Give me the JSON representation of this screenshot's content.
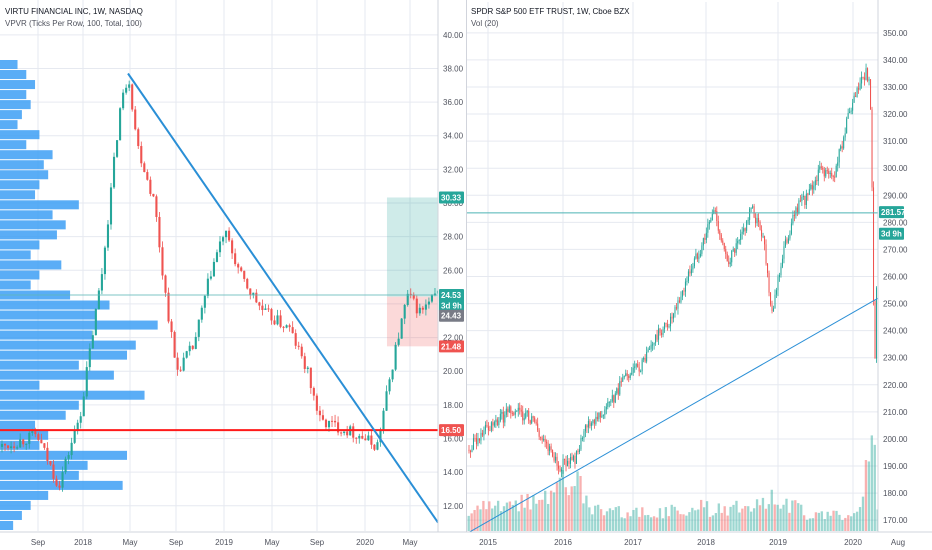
{
  "colors": {
    "up": "#26a69a",
    "down": "#ef5350",
    "profile": "#3d9ff5",
    "trendline": "#2a8fd6",
    "support": "#ff1a1a",
    "target_zone": "rgba(38,166,154,0.22)",
    "stop_zone": "rgba(239,83,80,0.22)",
    "grid": "#e6e9f0",
    "axis_text": "#50535e"
  },
  "chart_data": [
    {
      "type": "candlestick",
      "title": "VIRTU FINANCIAL INC, 1W, NASDAQ",
      "indicator_label": "VPVR (Ticks Per Row, 100, Total, 100)",
      "x_ticks": [
        "Sep",
        "2018",
        "May",
        "Sep",
        "2019",
        "May",
        "Sep",
        "2020",
        "May"
      ],
      "y_ticks": [
        "12.00",
        "14.00",
        "16.00",
        "18.00",
        "20.00",
        "22.00",
        "24.00",
        "26.00",
        "28.00",
        "30.00",
        "32.00",
        "34.00",
        "36.00",
        "38.00",
        "40.00"
      ],
      "ylim": [
        10.5,
        41.0
      ],
      "price_path": [
        [
          0,
          15.5
        ],
        [
          0.08,
          16.2
        ],
        [
          0.13,
          13.2
        ],
        [
          0.18,
          17.5
        ],
        [
          0.23,
          26.0
        ],
        [
          0.27,
          35.5
        ],
        [
          0.29,
          37.7
        ],
        [
          0.31,
          33.5
        ],
        [
          0.35,
          30.0
        ],
        [
          0.37,
          25.5
        ],
        [
          0.4,
          20.0
        ],
        [
          0.44,
          21.5
        ],
        [
          0.48,
          26.0
        ],
        [
          0.51,
          28.3
        ],
        [
          0.55,
          25.5
        ],
        [
          0.6,
          23.5
        ],
        [
          0.66,
          22.5
        ],
        [
          0.7,
          20.0
        ],
        [
          0.73,
          17.0
        ],
        [
          0.76,
          16.8
        ],
        [
          0.82,
          16.2
        ],
        [
          0.86,
          15.5
        ],
        [
          0.9,
          21.0
        ],
        [
          0.93,
          24.5
        ],
        [
          0.96,
          23.5
        ],
        [
          1.0,
          24.6
        ]
      ],
      "volume_profile": [
        0.04,
        0.06,
        0.08,
        0.06,
        0.07,
        0.05,
        0.04,
        0.09,
        0.06,
        0.12,
        0.1,
        0.11,
        0.09,
        0.08,
        0.18,
        0.12,
        0.15,
        0.13,
        0.09,
        0.07,
        0.14,
        0.09,
        0.07,
        0.16,
        0.25,
        0.22,
        0.36,
        0.21,
        0.31,
        0.29,
        0.18,
        0.26,
        0.09,
        0.33,
        0.18,
        0.15,
        0.08,
        0.11,
        0.09,
        0.29,
        0.2,
        0.18,
        0.28,
        0.11,
        0.07,
        0.05,
        0.03
      ],
      "trendline": [
        [
          0.289,
          37.7
        ],
        [
          1.0,
          11.0
        ]
      ],
      "support_level": 16.5,
      "long_position": {
        "entry": 24.43,
        "target": 30.33,
        "stop": 21.48,
        "x_start": 0.883,
        "x_end": 1.0
      },
      "last_price": 24.53,
      "price_badges": [
        {
          "value": 30.33,
          "label": "30.33",
          "color": "#26a69a"
        },
        {
          "value": 24.53,
          "label": "24.53",
          "color": "#26a69a"
        },
        {
          "value": 23.9,
          "label": "3d 9h",
          "color": "#26a69a"
        },
        {
          "value": 23.3,
          "label": "24.43",
          "color": "#787b86"
        },
        {
          "value": 21.48,
          "label": "21.48",
          "color": "#ef5350"
        },
        {
          "value": 16.5,
          "label": "16.50",
          "color": "#ef5350"
        }
      ]
    },
    {
      "type": "candlestick",
      "title": "SPDR S&P 500 ETF TRUST, 1W, Cboe BZX",
      "indicator_label": "Vol (20)",
      "x_ticks": [
        "2015",
        "2016",
        "2017",
        "2018",
        "2019",
        "2020",
        "Aug"
      ],
      "y_ticks": [
        "170.00",
        "180.00",
        "190.00",
        "200.00",
        "210.00",
        "220.00",
        "230.00",
        "240.00",
        "250.00",
        "260.00",
        "270.00",
        "280.00",
        "290.00",
        "300.00",
        "310.00",
        "320.00",
        "330.00",
        "340.00",
        "350.00"
      ],
      "ylim": [
        166.0,
        354.0
      ],
      "price_path": [
        [
          0,
          196
        ],
        [
          0.05,
          205
        ],
        [
          0.1,
          210
        ],
        [
          0.15,
          208
        ],
        [
          0.18,
          200
        ],
        [
          0.22,
          190
        ],
        [
          0.26,
          193
        ],
        [
          0.29,
          205
        ],
        [
          0.32,
          210
        ],
        [
          0.35,
          214
        ],
        [
          0.38,
          222
        ],
        [
          0.42,
          227
        ],
        [
          0.46,
          238
        ],
        [
          0.5,
          245
        ],
        [
          0.54,
          262
        ],
        [
          0.57,
          272
        ],
        [
          0.6,
          285
        ],
        [
          0.63,
          265
        ],
        [
          0.66,
          272
        ],
        [
          0.69,
          285
        ],
        [
          0.72,
          275
        ],
        [
          0.74,
          247
        ],
        [
          0.77,
          270
        ],
        [
          0.8,
          285
        ],
        [
          0.83,
          290
        ],
        [
          0.86,
          300
        ],
        [
          0.89,
          296
        ],
        [
          0.93,
          320
        ],
        [
          0.97,
          336
        ],
        [
          0.98,
          330
        ],
        [
          0.985,
          300
        ],
        [
          0.99,
          240
        ],
        [
          0.993,
          228
        ],
        [
          1.0,
          281.6
        ]
      ],
      "volume_path": [
        [
          0,
          0.25
        ],
        [
          0.14,
          0.35
        ],
        [
          0.2,
          0.45
        ],
        [
          0.25,
          0.7
        ],
        [
          0.3,
          0.3
        ],
        [
          0.45,
          0.2
        ],
        [
          0.55,
          0.3
        ],
        [
          0.62,
          0.25
        ],
        [
          0.74,
          0.45
        ],
        [
          0.82,
          0.22
        ],
        [
          0.92,
          0.2
        ],
        [
          0.96,
          0.3
        ],
        [
          0.975,
          0.9
        ],
        [
          0.99,
          1.0
        ],
        [
          1.0,
          0.35
        ]
      ],
      "trendline": [
        [
          0.0,
          165.5
        ],
        [
          1.0,
          252.0
        ]
      ],
      "horizontal_line": 283.5,
      "last_price": 281.57,
      "price_badges": [
        {
          "value": 283.8,
          "label": "281.57",
          "color": "#26a69a"
        },
        {
          "value": 275.8,
          "label": "3d 9h",
          "color": "#26a69a"
        }
      ]
    }
  ]
}
